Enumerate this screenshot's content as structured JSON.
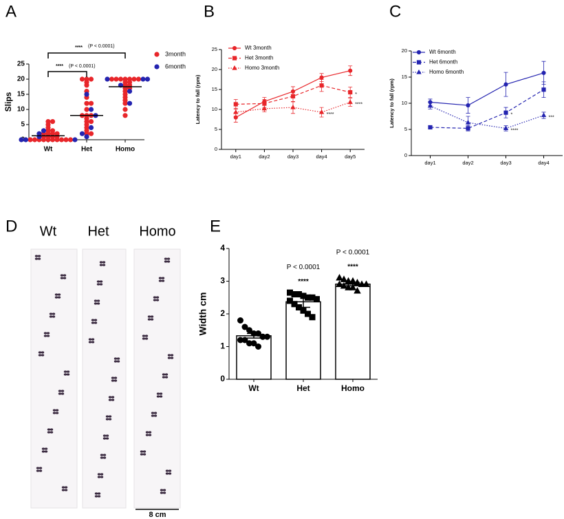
{
  "chart_data": [
    {
      "label": "A",
      "type": "strip",
      "ylabel": "Slips",
      "categories": [
        "Wt",
        "Het",
        "Homo"
      ],
      "ylim": [
        0,
        25
      ],
      "yticks": [
        0,
        5,
        10,
        15,
        20,
        25
      ],
      "series": [
        {
          "name": "3month",
          "color": "#e8262a",
          "values": [
            [
              0,
              0,
              0,
              0,
              0,
              0,
              0,
              0,
              1,
              1,
              1,
              2,
              2,
              2,
              3,
              3,
              4,
              5,
              6,
              6,
              0,
              0,
              1,
              2
            ],
            [
              20,
              20,
              19,
              18,
              16,
              14,
              12,
              10,
              8,
              8,
              7,
              6,
              5,
              4,
              3,
              2,
              2,
              20,
              12,
              8,
              6
            ],
            [
              20,
              20,
              20,
              20,
              20,
              20,
              19,
              19,
              18,
              18,
              17,
              16,
              15,
              14,
              13,
              12,
              10,
              8,
              20,
              17
            ]
          ]
        },
        {
          "name": "6month",
          "color": "#2424b0",
          "values": [
            [
              0,
              0,
              1,
              2,
              3,
              0
            ],
            [
              15,
              10,
              8,
              4,
              2,
              1
            ],
            [
              20,
              20,
              20,
              18,
              16,
              12
            ]
          ]
        }
      ],
      "means": [
        1.3,
        8,
        17.5
      ],
      "comparisons": [
        {
          "groups": [
            "Wt",
            "Het"
          ],
          "stars": "****",
          "p": "(P < 0.0001)"
        },
        {
          "groups": [
            "Wt",
            "Homo"
          ],
          "stars": "****",
          "p": "(P < 0.0001)"
        }
      ]
    },
    {
      "label": "B",
      "type": "line",
      "ylabel": "Latency to fall (rpm)",
      "categories": [
        "day1",
        "day2",
        "day3",
        "day4",
        "day5"
      ],
      "ylim": [
        0,
        25
      ],
      "yticks": [
        0,
        5,
        10,
        15,
        20,
        25
      ],
      "series": [
        {
          "name": "Wt 3month",
          "color": "#e8262a",
          "marker": "circle",
          "dash": "solid",
          "values": [
            8,
            12,
            14.5,
            18,
            19.7
          ],
          "errors": [
            1.2,
            1,
            1.2,
            1,
            1.2
          ]
        },
        {
          "name": "Het 3month",
          "color": "#e8262a",
          "marker": "square",
          "dash": "dashed",
          "values": [
            11.3,
            11.5,
            13.3,
            16,
            14.3
          ],
          "errors": [
            1.2,
            1,
            1.4,
            1.5,
            1.3
          ]
        },
        {
          "name": "Homo 3month",
          "color": "#e8262a",
          "marker": "triangle",
          "dash": "dotted",
          "values": [
            9.3,
            10.2,
            10.5,
            9.3,
            11.8
          ],
          "errors": [
            1,
            0.8,
            1.5,
            1.2,
            1
          ]
        }
      ],
      "annotations": [
        {
          "series": "Het 3month",
          "x": "day5",
          "text": "*"
        },
        {
          "series": "Homo 3month",
          "x": "day5",
          "text": "****"
        },
        {
          "series": "Homo 3month",
          "x": "day4",
          "text": "****"
        }
      ]
    },
    {
      "label": "C",
      "type": "line",
      "ylabel": "Latency to fall (rpm)",
      "categories": [
        "day1",
        "day2",
        "day3",
        "day4"
      ],
      "ylim": [
        0,
        20
      ],
      "yticks": [
        0,
        5,
        10,
        15,
        20
      ],
      "series": [
        {
          "name": "Wt 6month",
          "color": "#2424b0",
          "marker": "circle",
          "dash": "solid",
          "values": [
            10.2,
            9.6,
            13.6,
            15.8
          ],
          "errors": [
            0.6,
            1.5,
            2.3,
            2.2
          ]
        },
        {
          "name": "Het 6month",
          "color": "#2424b0",
          "marker": "square",
          "dash": "dashed",
          "values": [
            5.4,
            5.2,
            8.2,
            12.6
          ],
          "errors": [
            0.2,
            0.5,
            1,
            1.5
          ]
        },
        {
          "name": "Homo 6month",
          "color": "#2424b0",
          "marker": "triangle",
          "dash": "dotted",
          "values": [
            9.5,
            6.3,
            5.2,
            7.7
          ],
          "errors": [
            0.6,
            1.2,
            0.5,
            0.6
          ]
        }
      ],
      "annotations": [
        {
          "series": "Het 6month",
          "x": "day3",
          "text": "*"
        },
        {
          "series": "Homo 6month",
          "x": "day3",
          "text": "****"
        },
        {
          "series": "Homo 6month",
          "x": "day4",
          "text": "***"
        }
      ]
    },
    {
      "label": "E",
      "type": "bar",
      "ylabel": "Width cm",
      "categories": [
        "Wt",
        "Het",
        "Homo"
      ],
      "ylim": [
        0,
        4
      ],
      "yticks": [
        0,
        1,
        2,
        3,
        4
      ],
      "color": "#000000",
      "values": [
        1.33,
        2.37,
        2.91
      ],
      "errors": [
        0.07,
        0.17,
        0.05
      ],
      "markers": [
        "circle",
        "square",
        "triangle"
      ],
      "points": [
        [
          1.8,
          1.6,
          1.5,
          1.4,
          1.4,
          1.3,
          1.3,
          1.2,
          1.2,
          1.1,
          1.1,
          1.0,
          1.3
        ],
        [
          2.65,
          2.6,
          2.6,
          2.55,
          2.5,
          2.5,
          2.45,
          2.4,
          2.3,
          2.2,
          2.1,
          2.0,
          1.9
        ],
        [
          3.1,
          3.05,
          3.0,
          3.0,
          2.95,
          2.9,
          2.9,
          2.9,
          2.85,
          2.8,
          2.8,
          2.7
        ]
      ],
      "annotations": [
        {
          "category": "Het",
          "p": "P < 0.0001",
          "stars": "****"
        },
        {
          "category": "Homo",
          "p": "P < 0.0001",
          "stars": "****"
        }
      ]
    }
  ],
  "footprint_panel": {
    "label": "D",
    "strips": [
      "Wt",
      "Het",
      "Homo"
    ],
    "scale_bar": "8 cm"
  }
}
